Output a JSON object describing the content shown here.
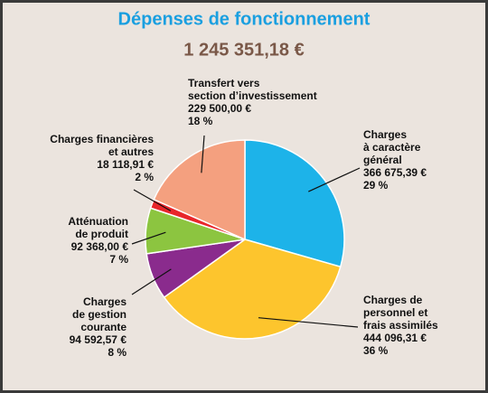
{
  "chart_data": {
    "type": "pie",
    "title": "Dépenses de fonctionnement",
    "subtitle": "1 245 351,18 €",
    "categories": [
      [
        "Charges",
        "à caractère",
        "général"
      ],
      [
        "Charges de",
        "personnel et",
        "frais assimilés"
      ],
      [
        "Charges",
        "de gestion",
        "courante"
      ],
      [
        "Atténuation",
        "de produit"
      ],
      [
        "Charges financières",
        "et autres"
      ],
      [
        "Transfert vers",
        "section d’investissement"
      ]
    ],
    "values": [
      366675.39,
      444096.31,
      94592.57,
      92368.0,
      18118.91,
      229500.0
    ],
    "value_labels": [
      "366 675,39 €",
      "444 096,31 €",
      "94 592,57 €",
      "92 368,00 €",
      "18 118,91 €",
      "229 500,00 €"
    ],
    "percents": [
      29,
      36,
      8,
      7,
      2,
      18
    ],
    "percent_labels": [
      "29 %",
      "36 %",
      "8 %",
      "7 %",
      "2 %",
      "18 %"
    ],
    "colors": [
      "#1db3e9",
      "#fdc52d",
      "#8a2b8d",
      "#8cc540",
      "#e8262b",
      "#f4a07f"
    ]
  }
}
